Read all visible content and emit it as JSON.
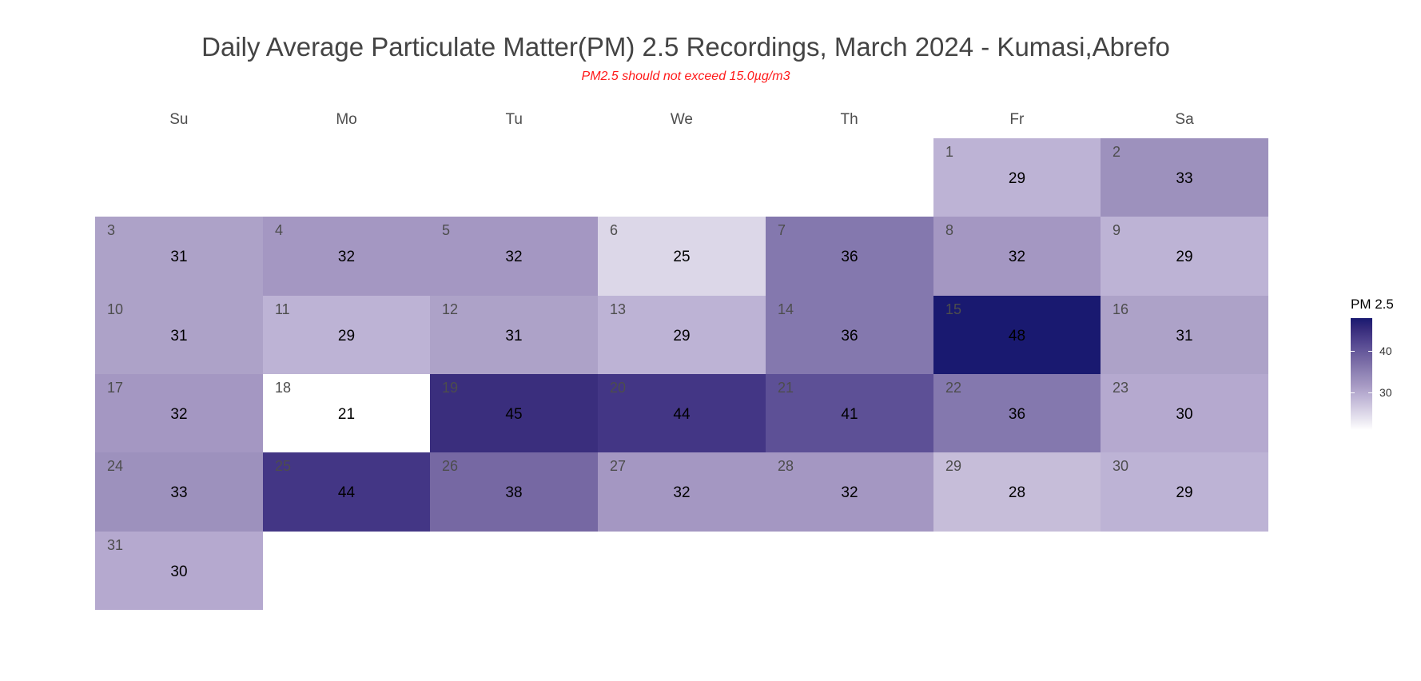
{
  "chart_data": {
    "type": "heatmap",
    "title": "Daily Average Particulate Matter(PM) 2.5 Recordings, March 2024 - Kumasi,Abrefo",
    "subtitle": "PM2.5 should not exceed 15.0µg/m3",
    "weekdays": [
      "Su",
      "Mo",
      "Tu",
      "We",
      "Th",
      "Fr",
      "Sa"
    ],
    "first_weekday_index": 5,
    "days": [
      {
        "day": "1",
        "value": 29
      },
      {
        "day": "2",
        "value": 33
      },
      {
        "day": "3",
        "value": 31
      },
      {
        "day": "4",
        "value": 32
      },
      {
        "day": "5",
        "value": 32
      },
      {
        "day": "6",
        "value": 25
      },
      {
        "day": "7",
        "value": 36
      },
      {
        "day": "8",
        "value": 32
      },
      {
        "day": "9",
        "value": 29
      },
      {
        "day": "10",
        "value": 31
      },
      {
        "day": "11",
        "value": 29
      },
      {
        "day": "12",
        "value": 31
      },
      {
        "day": "13",
        "value": 29
      },
      {
        "day": "14",
        "value": 36
      },
      {
        "day": "15",
        "value": 48
      },
      {
        "day": "16",
        "value": 31
      },
      {
        "day": "17",
        "value": 32
      },
      {
        "day": "18",
        "value": 21
      },
      {
        "day": "19",
        "value": 45
      },
      {
        "day": "20",
        "value": 44
      },
      {
        "day": "21",
        "value": 41
      },
      {
        "day": "22",
        "value": 36
      },
      {
        "day": "23",
        "value": 30
      },
      {
        "day": "24",
        "value": 33
      },
      {
        "day": "25",
        "value": 44
      },
      {
        "day": "26",
        "value": 38
      },
      {
        "day": "27",
        "value": 32
      },
      {
        "day": "28",
        "value": 32
      },
      {
        "day": "29",
        "value": 28
      },
      {
        "day": "30",
        "value": 29
      },
      {
        "day": "31",
        "value": 30
      }
    ],
    "legend": {
      "title": "PM 2.5",
      "ticks": [
        {
          "value": 40,
          "label": "40"
        },
        {
          "value": 30,
          "label": "30"
        }
      ],
      "range": [
        21,
        48
      ],
      "position": "right"
    },
    "colors": {
      "low": "#ffffff",
      "high": "#191970",
      "title": "#444444",
      "subtitle": "#ff1a1a"
    }
  }
}
